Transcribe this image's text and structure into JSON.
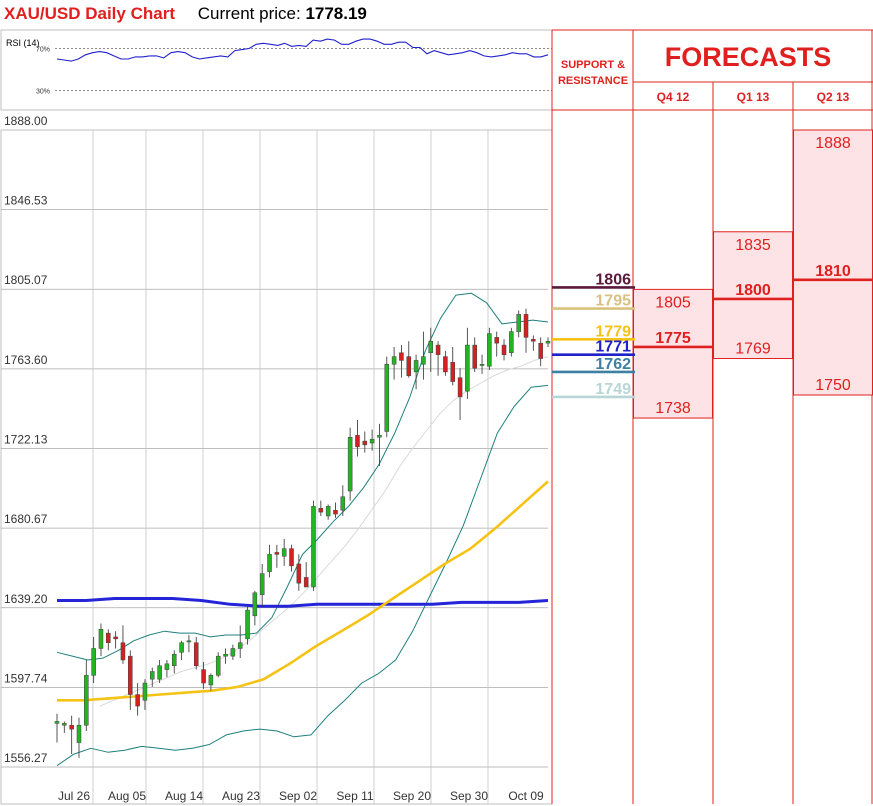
{
  "header": {
    "title": "XAU/USD Daily Chart",
    "price_label": "Current price:",
    "price_value": "1778.19"
  },
  "rsi": {
    "label": "RSI (14)",
    "levels": [
      70,
      30
    ],
    "level_labels": [
      "70%",
      "30%"
    ],
    "values": [
      60,
      59,
      58,
      60,
      64,
      66,
      67,
      66,
      63,
      60,
      60,
      62,
      62,
      63,
      63,
      61,
      66,
      67,
      66,
      62,
      60,
      61,
      62,
      63,
      62,
      68,
      69,
      70,
      74,
      75,
      74,
      73,
      75,
      72,
      73,
      72,
      78,
      77,
      79,
      78,
      74,
      74,
      77,
      79,
      79,
      77,
      74,
      74,
      76,
      76,
      71,
      71,
      65,
      68,
      66,
      64,
      65,
      66,
      68,
      66,
      63,
      62,
      63,
      64,
      66,
      65,
      65,
      62,
      62,
      64
    ]
  },
  "chart_data": {
    "type": "candlestick",
    "y_ticks": [
      "1888.00",
      "1846.53",
      "1805.07",
      "1763.60",
      "1722.13",
      "1680.67",
      "1639.20",
      "1597.74",
      "1556.27"
    ],
    "ylim": [
      1556.27,
      1888.0
    ],
    "x_labels": [
      "Jul 26",
      "Aug 05",
      "Aug 14",
      "Aug 23",
      "Sep 02",
      "Sep 11",
      "Sep 20",
      "Sep 30",
      "Oct 09"
    ],
    "candles": [
      {
        "o": 1579,
        "h": 1584,
        "l": 1569,
        "c": 1580
      },
      {
        "o": 1578,
        "h": 1580,
        "l": 1574,
        "c": 1579
      },
      {
        "o": 1578,
        "h": 1583,
        "l": 1563,
        "c": 1576
      },
      {
        "o": 1569,
        "h": 1582,
        "l": 1561,
        "c": 1578
      },
      {
        "o": 1578,
        "h": 1612,
        "l": 1575,
        "c": 1604
      },
      {
        "o": 1604,
        "h": 1624,
        "l": 1600,
        "c": 1618
      },
      {
        "o": 1618,
        "h": 1631,
        "l": 1614,
        "c": 1628
      },
      {
        "o": 1626,
        "h": 1628,
        "l": 1617,
        "c": 1621
      },
      {
        "o": 1624,
        "h": 1627,
        "l": 1618,
        "c": 1623
      },
      {
        "o": 1621,
        "h": 1630,
        "l": 1610,
        "c": 1612
      },
      {
        "o": 1614,
        "h": 1617,
        "l": 1586,
        "c": 1594
      },
      {
        "o": 1594,
        "h": 1600,
        "l": 1583,
        "c": 1588
      },
      {
        "o": 1591,
        "h": 1602,
        "l": 1586,
        "c": 1600
      },
      {
        "o": 1602,
        "h": 1608,
        "l": 1598,
        "c": 1606
      },
      {
        "o": 1602,
        "h": 1612,
        "l": 1600,
        "c": 1609
      },
      {
        "o": 1607,
        "h": 1612,
        "l": 1603,
        "c": 1610
      },
      {
        "o": 1609,
        "h": 1617,
        "l": 1605,
        "c": 1615
      },
      {
        "o": 1616,
        "h": 1622,
        "l": 1612,
        "c": 1621
      },
      {
        "o": 1622,
        "h": 1625,
        "l": 1616,
        "c": 1622
      },
      {
        "o": 1621,
        "h": 1624,
        "l": 1607,
        "c": 1609
      },
      {
        "o": 1607,
        "h": 1611,
        "l": 1597,
        "c": 1600
      },
      {
        "o": 1599,
        "h": 1605,
        "l": 1596,
        "c": 1604
      },
      {
        "o": 1604,
        "h": 1616,
        "l": 1603,
        "c": 1614
      },
      {
        "o": 1614,
        "h": 1618,
        "l": 1610,
        "c": 1615
      },
      {
        "o": 1614,
        "h": 1620,
        "l": 1612,
        "c": 1618
      },
      {
        "o": 1618,
        "h": 1630,
        "l": 1613,
        "c": 1621
      },
      {
        "o": 1623,
        "h": 1640,
        "l": 1620,
        "c": 1638
      },
      {
        "o": 1635,
        "h": 1648,
        "l": 1630,
        "c": 1647
      },
      {
        "o": 1646,
        "h": 1662,
        "l": 1640,
        "c": 1657
      },
      {
        "o": 1658,
        "h": 1672,
        "l": 1655,
        "c": 1667
      },
      {
        "o": 1668,
        "h": 1672,
        "l": 1660,
        "c": 1667
      },
      {
        "o": 1666,
        "h": 1675,
        "l": 1661,
        "c": 1670
      },
      {
        "o": 1670,
        "h": 1672,
        "l": 1658,
        "c": 1661
      },
      {
        "o": 1662,
        "h": 1667,
        "l": 1648,
        "c": 1652
      },
      {
        "o": 1655,
        "h": 1663,
        "l": 1650,
        "c": 1650
      },
      {
        "o": 1650,
        "h": 1695,
        "l": 1648,
        "c": 1692
      },
      {
        "o": 1691,
        "h": 1695,
        "l": 1687,
        "c": 1689
      },
      {
        "o": 1687,
        "h": 1693,
        "l": 1685,
        "c": 1692
      },
      {
        "o": 1690,
        "h": 1694,
        "l": 1686,
        "c": 1688
      },
      {
        "o": 1690,
        "h": 1703,
        "l": 1687,
        "c": 1697
      },
      {
        "o": 1700,
        "h": 1733,
        "l": 1695,
        "c": 1728
      },
      {
        "o": 1729,
        "h": 1737,
        "l": 1718,
        "c": 1723
      },
      {
        "o": 1726,
        "h": 1731,
        "l": 1720,
        "c": 1724
      },
      {
        "o": 1725,
        "h": 1732,
        "l": 1721,
        "c": 1727
      },
      {
        "o": 1728,
        "h": 1735,
        "l": 1713,
        "c": 1729
      },
      {
        "o": 1731,
        "h": 1770,
        "l": 1728,
        "c": 1766
      },
      {
        "o": 1766,
        "h": 1775,
        "l": 1758,
        "c": 1770
      },
      {
        "o": 1772,
        "h": 1776,
        "l": 1759,
        "c": 1768
      },
      {
        "o": 1770,
        "h": 1778,
        "l": 1759,
        "c": 1760
      },
      {
        "o": 1762,
        "h": 1771,
        "l": 1753,
        "c": 1768
      },
      {
        "o": 1766,
        "h": 1783,
        "l": 1758,
        "c": 1770
      },
      {
        "o": 1772,
        "h": 1785,
        "l": 1762,
        "c": 1778
      },
      {
        "o": 1776,
        "h": 1778,
        "l": 1760,
        "c": 1771
      },
      {
        "o": 1770,
        "h": 1773,
        "l": 1760,
        "c": 1762
      },
      {
        "o": 1767,
        "h": 1775,
        "l": 1755,
        "c": 1757
      },
      {
        "o": 1759,
        "h": 1764,
        "l": 1737,
        "c": 1749
      },
      {
        "o": 1752,
        "h": 1785,
        "l": 1748,
        "c": 1776
      },
      {
        "o": 1776,
        "h": 1780,
        "l": 1762,
        "c": 1764
      },
      {
        "o": 1766,
        "h": 1771,
        "l": 1761,
        "c": 1766
      },
      {
        "o": 1765,
        "h": 1785,
        "l": 1763,
        "c": 1782
      },
      {
        "o": 1780,
        "h": 1783,
        "l": 1770,
        "c": 1777
      },
      {
        "o": 1776,
        "h": 1779,
        "l": 1768,
        "c": 1771
      },
      {
        "o": 1772,
        "h": 1785,
        "l": 1770,
        "c": 1783
      },
      {
        "o": 1783,
        "h": 1794,
        "l": 1780,
        "c": 1792
      },
      {
        "o": 1792,
        "h": 1795,
        "l": 1772,
        "c": 1780
      },
      {
        "o": 1779,
        "h": 1781,
        "l": 1773,
        "c": 1778
      },
      {
        "o": 1777,
        "h": 1780,
        "l": 1765,
        "c": 1769
      },
      {
        "o": 1777,
        "h": 1780,
        "l": 1775,
        "c": 1778
      }
    ],
    "ma_200": [
      1643,
      1643,
      1644,
      1644,
      1644,
      1643,
      1641,
      1640,
      1640,
      1641,
      1641,
      1641,
      1641,
      1641,
      1642,
      1642,
      1642,
      1643
    ],
    "ma_50": [
      1591,
      1591,
      1592,
      1593,
      1594,
      1595,
      1596,
      1598,
      1602,
      1610,
      1619,
      1627,
      1635,
      1644,
      1653,
      1662,
      1670,
      1681,
      1693,
      1705
    ],
    "ma_20": [
      1588,
      1591,
      1594,
      1597,
      1600,
      1603,
      1606,
      1608,
      1610,
      1613,
      1617,
      1622,
      1628,
      1634,
      1640,
      1647,
      1655,
      1663,
      1671,
      1680,
      1690,
      1700,
      1712,
      1722,
      1731,
      1740,
      1747,
      1752,
      1756,
      1760,
      1763,
      1765,
      1768,
      1770
    ],
    "bb_upper": [
      1616,
      1614,
      1612,
      1613,
      1617,
      1622,
      1625,
      1627,
      1626,
      1626,
      1624,
      1625,
      1625,
      1626,
      1634,
      1650,
      1667,
      1675,
      1684,
      1692,
      1702,
      1714,
      1730,
      1749,
      1773,
      1790,
      1802,
      1803,
      1798,
      1787,
      1788,
      1789,
      1788
    ],
    "bb_lower": [
      1557,
      1563,
      1566,
      1564,
      1565,
      1567,
      1566,
      1565,
      1566,
      1568,
      1573,
      1575,
      1576,
      1575,
      1572,
      1573,
      1583,
      1591,
      1600,
      1605,
      1612,
      1627,
      1645,
      1663,
      1682,
      1706,
      1730,
      1744,
      1754,
      1755
    ]
  },
  "support_resistance": {
    "heading": "SUPPORT & RESISTANCE",
    "levels": [
      {
        "value": 1806,
        "label": "1806",
        "color": "#5a1a3c"
      },
      {
        "value": 1795,
        "label": "1795",
        "color": "#d9c27f"
      },
      {
        "value": 1779,
        "label": "1779",
        "color": "#f5c316"
      },
      {
        "value": 1771,
        "label": "1771",
        "color": "#1f22c8"
      },
      {
        "value": 1762,
        "label": "1762",
        "color": "#3e7fa4"
      },
      {
        "value": 1749,
        "label": "1749",
        "color": "#b8d6d6"
      }
    ]
  },
  "forecasts": {
    "heading": "FORECASTS",
    "columns": [
      {
        "label": "Q4 12",
        "high": 1805,
        "high_label": "1805",
        "mid": 1775,
        "mid_label": "1775",
        "low": 1738,
        "low_label": "1738"
      },
      {
        "label": "Q1 13",
        "high": 1835,
        "high_label": "1835",
        "mid": 1800,
        "mid_label": "1800",
        "low": 1769,
        "low_label": "1769"
      },
      {
        "label": "Q2 13",
        "high": 1888,
        "high_label": "1888",
        "mid": 1810,
        "mid_label": "1810",
        "low": 1750,
        "low_label": "1750"
      }
    ]
  },
  "colors": {
    "accent_red": "#e0201f",
    "bull": "#22b422",
    "bear": "#d42020",
    "ma_200": "#2424d8",
    "ma_50": "#f5c316",
    "bollinger": "#1f7f7f",
    "forecast_fill": "#fde3e6"
  }
}
